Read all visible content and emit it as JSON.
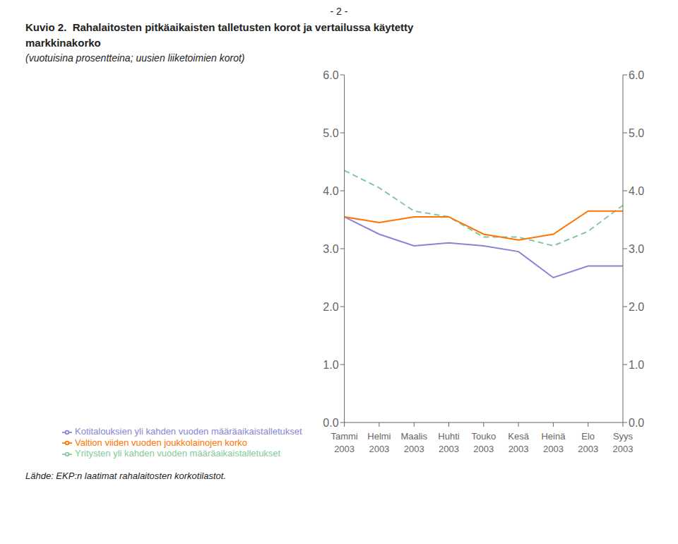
{
  "chart_data": {
    "type": "line",
    "title": "Kuvio 2.  Rahalaitosten pitkäaikaisten talletusten korot ja vertailussa käytetty\nmarkkinakorko",
    "subtitle": "(vuotuisina prosentteina; uusien liiketoimien korot)",
    "annotations": [
      "- 2 -",
      "Lähde: EKP:n laatimat rahalaitosten korkotilastot."
    ],
    "categories": [
      "Tammi\n2003",
      "Helmi\n2003",
      "Maalis\n2003",
      "Huhti\n2003",
      "Touko\n2003",
      "Kesä\n2003",
      "Heinä\n2003",
      "Elo\n2003",
      "Syys\n2003"
    ],
    "series": [
      {
        "name": "Kotitalouksien yli kahden vuoden määräaikaistalletukset",
        "line_style": "solid",
        "values": [
          3.55,
          3.25,
          3.05,
          3.1,
          3.05,
          2.95,
          2.5,
          2.7,
          2.7
        ]
      },
      {
        "name": "Yritysten yli kahden vuoden määräaikaistalletukset",
        "line_style": "dashed",
        "values": [
          4.35,
          4.05,
          3.65,
          3.55,
          3.2,
          3.2,
          3.05,
          3.3,
          3.75
        ]
      },
      {
        "name": "Valtion viiden vuoden joukkolainojen korko",
        "line_style": "solid",
        "values": [
          3.55,
          3.45,
          3.55,
          3.55,
          3.25,
          3.15,
          3.25,
          3.65,
          3.65
        ]
      }
    ],
    "ylim": [
      0.0,
      6.0
    ],
    "yticks": [
      {
        "value": 0.0,
        "label": "0.0"
      },
      {
        "value": 1.0,
        "label": "1.0"
      },
      {
        "value": 2.0,
        "label": "2.0"
      },
      {
        "value": 3.0,
        "label": "3.0"
      },
      {
        "value": 4.0,
        "label": "4.0"
      },
      {
        "value": 5.0,
        "label": "5.0"
      },
      {
        "value": 6.0,
        "label": "6.0"
      }
    ],
    "y2lim": [
      0.0,
      6.0
    ],
    "y2ticks": [
      {
        "value": 0.0,
        "label": "0.0"
      },
      {
        "value": 1.0,
        "label": "1.0"
      },
      {
        "value": 2.0,
        "label": "2.0"
      },
      {
        "value": 3.0,
        "label": "3.0"
      },
      {
        "value": 4.0,
        "label": "4.0"
      },
      {
        "value": 5.0,
        "label": "5.0"
      },
      {
        "value": 6.0,
        "label": "6.0"
      }
    ],
    "grid": false,
    "legend": "bottom"
  }
}
